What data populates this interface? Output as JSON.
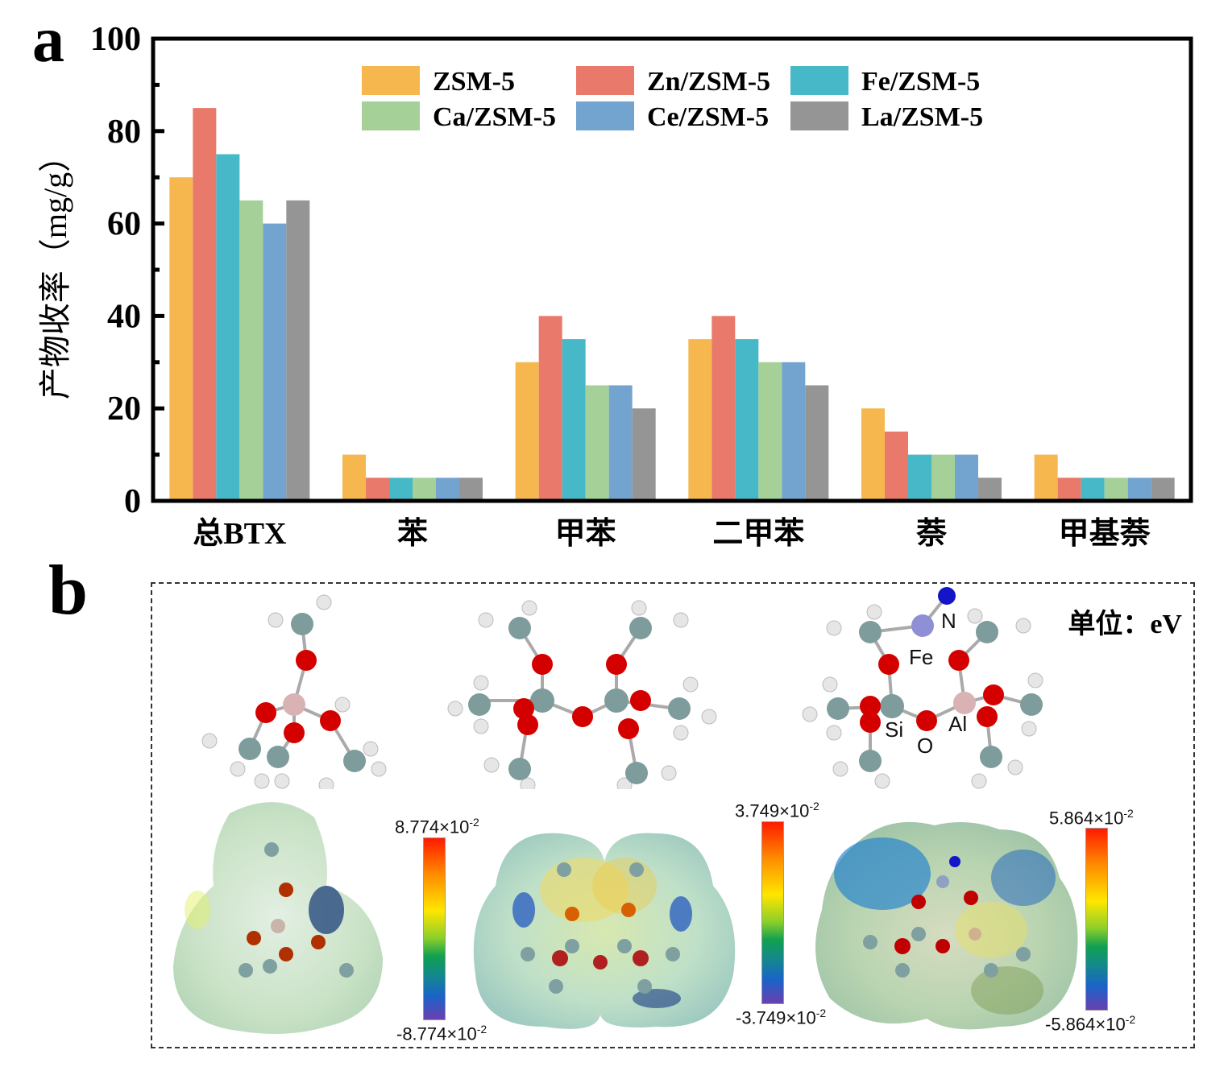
{
  "panel_a": {
    "label": "a",
    "chart_data": {
      "type": "bar",
      "title": "",
      "xlabel": "",
      "ylabel": "产物收率（mg/g）",
      "ylim": [
        0,
        100
      ],
      "yticks": [
        0,
        20,
        40,
        60,
        80,
        100
      ],
      "yticks_minor": [
        10,
        30,
        50,
        70,
        90
      ],
      "grid": false,
      "legend_position": "top",
      "categories": [
        "总BTX",
        "苯",
        "甲苯",
        "二甲苯",
        "萘",
        "甲基萘"
      ],
      "series": [
        {
          "name": "ZSM-5",
          "color": "#F6B84E",
          "values": [
            70,
            10,
            30,
            35,
            20,
            10
          ]
        },
        {
          "name": "Zn/ZSM-5",
          "color": "#E9796A",
          "values": [
            85,
            5,
            40,
            40,
            15,
            5
          ]
        },
        {
          "name": "Fe/ZSM-5",
          "color": "#47B8C7",
          "values": [
            75,
            5,
            35,
            35,
            10,
            5
          ]
        },
        {
          "name": "Ca/ZSM-5",
          "color": "#A5D198",
          "values": [
            65,
            5,
            25,
            30,
            10,
            5
          ]
        },
        {
          "name": "Ce/ZSM-5",
          "color": "#72A4CF",
          "values": [
            60,
            5,
            25,
            30,
            10,
            5
          ]
        },
        {
          "name": "La/ZSM-5",
          "color": "#959595",
          "values": [
            65,
            5,
            20,
            25,
            5,
            5
          ]
        }
      ]
    }
  },
  "panel_b": {
    "label": "b",
    "unit_label": "单位：eV",
    "structures": [
      {
        "name": "structure-1",
        "atom_labels": []
      },
      {
        "name": "structure-2",
        "atom_labels": []
      },
      {
        "name": "structure-3",
        "atom_labels": [
          "N",
          "Fe",
          "Si",
          "O",
          "Al"
        ]
      }
    ],
    "colorbars": [
      {
        "max_mantissa": "8.774",
        "min_mantissa": "-8.774",
        "times": "×10",
        "exp": "-2"
      },
      {
        "max_mantissa": "3.749",
        "min_mantissa": "-3.749",
        "times": "×10",
        "exp": "-2"
      },
      {
        "max_mantissa": "5.864",
        "min_mantissa": "-5.864",
        "times": "×10",
        "exp": "-2"
      }
    ],
    "colors": {
      "oxygen": "#D40000",
      "carbon_silicon": "#7E9C9C",
      "hydrogen": "#E8E8E8",
      "aluminum": "#D9B3B3",
      "iron": "#8F8FD6",
      "nitrogen": "#1414C8"
    }
  }
}
